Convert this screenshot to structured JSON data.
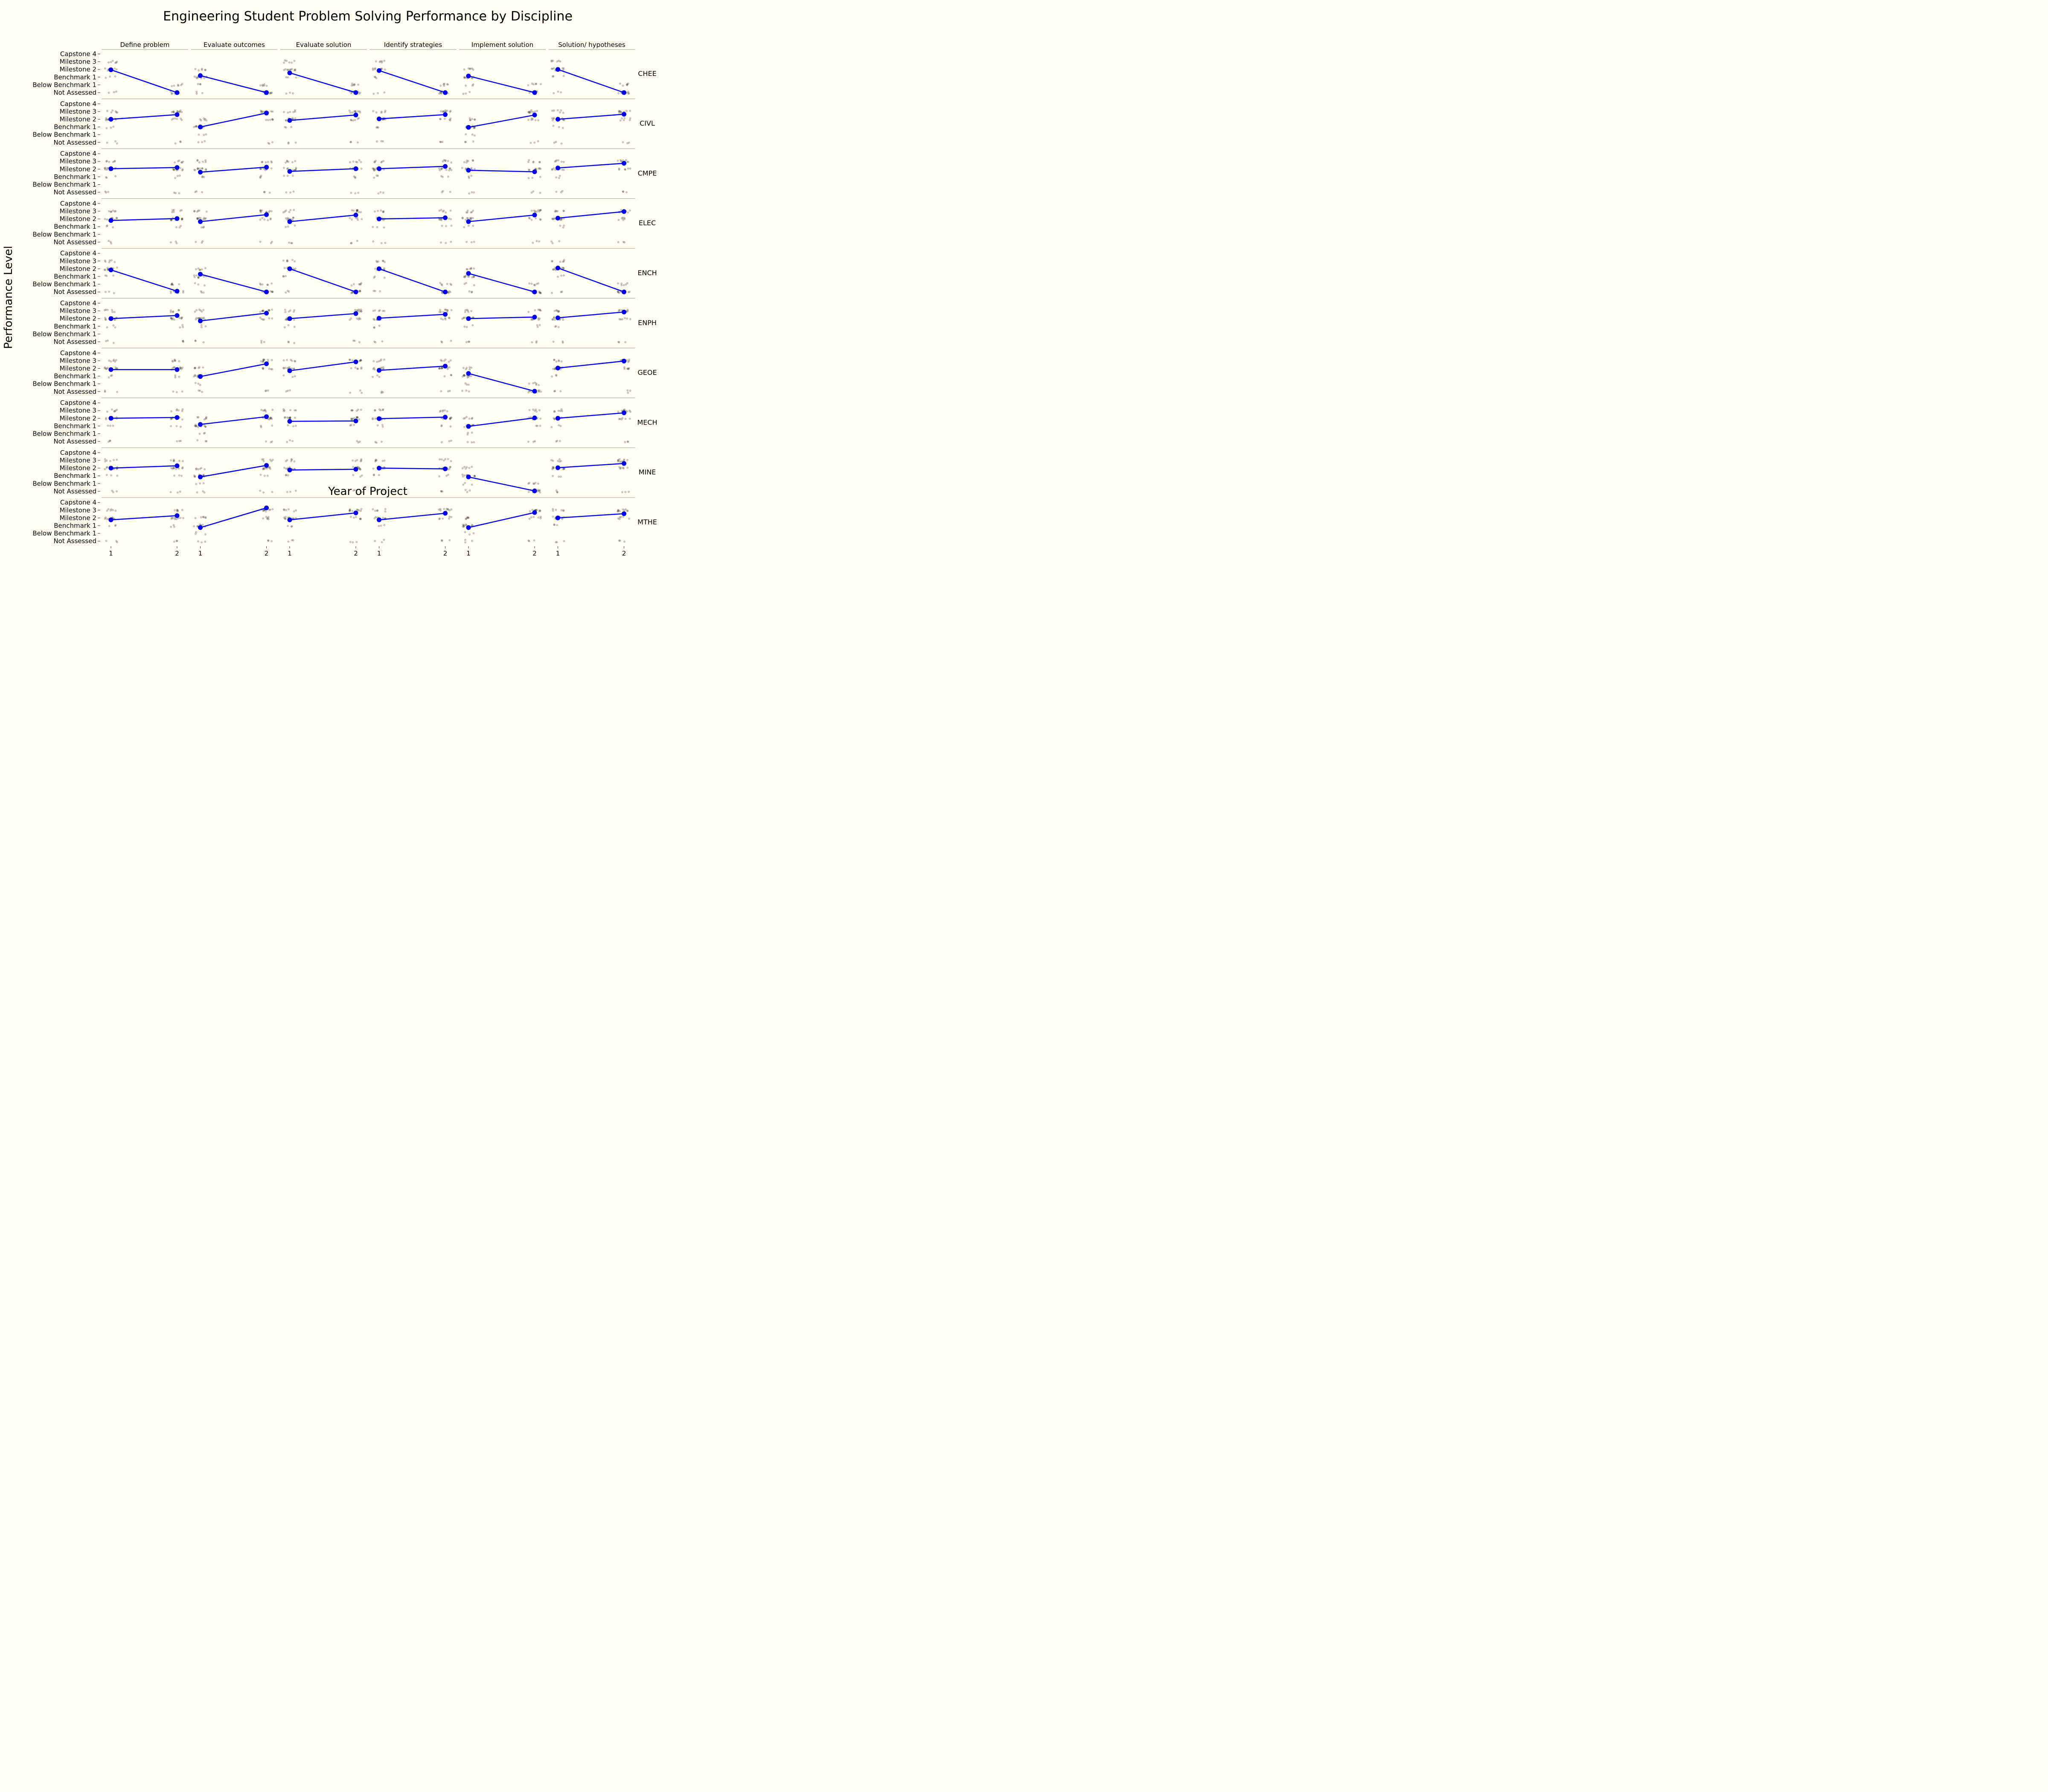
{
  "chart_data": {
    "type": "line",
    "title": "Engineering Student Problem Solving Performance by Discipline",
    "xlabel": "Year of Project",
    "ylabel": "Performance Level",
    "x_ticks": [
      "1",
      "2"
    ],
    "levels": [
      "Not Assessed",
      "Below Benchmark 1",
      "Benchmark 1",
      "Milestone 2",
      "Milestone 3",
      "Capstone 4"
    ],
    "level_values": [
      0,
      1,
      2,
      3,
      4,
      5
    ],
    "facet_columns": [
      "Define problem",
      "Evaluate outcomes",
      "Evaluate solution",
      "Identify strategies",
      "Implement solution",
      "Solution/ hypotheses"
    ],
    "facet_rows": [
      "CHEE",
      "CIVL",
      "CMPE",
      "ELEC",
      "ENCH",
      "ENPH",
      "GEOE",
      "MECH",
      "MINE",
      "MTHE"
    ],
    "mean_values": {
      "CHEE": [
        [
          2.95,
          0.0
        ],
        [
          2.2,
          0.0
        ],
        [
          2.55,
          0.0
        ],
        [
          2.85,
          0.0
        ],
        [
          2.15,
          0.0
        ],
        [
          3.0,
          0.0
        ]
      ],
      "CIVL": [
        [
          3.0,
          3.6
        ],
        [
          2.0,
          3.8
        ],
        [
          2.85,
          3.55
        ],
        [
          3.05,
          3.6
        ],
        [
          1.95,
          3.55
        ],
        [
          3.0,
          3.65
        ]
      ],
      "CMPE": [
        [
          3.05,
          3.2
        ],
        [
          2.6,
          3.25
        ],
        [
          2.7,
          3.05
        ],
        [
          3.05,
          3.35
        ],
        [
          2.85,
          2.65
        ],
        [
          3.15,
          3.75
        ]
      ],
      "ELEC": [
        [
          2.8,
          3.05
        ],
        [
          2.65,
          3.55
        ],
        [
          2.65,
          3.5
        ],
        [
          3.0,
          3.15
        ],
        [
          2.65,
          3.5
        ],
        [
          3.1,
          3.95
        ]
      ],
      "ENCH": [
        [
          2.85,
          0.1
        ],
        [
          2.3,
          0.0
        ],
        [
          3.0,
          0.0
        ],
        [
          3.0,
          0.0
        ],
        [
          2.4,
          0.0
        ],
        [
          3.1,
          0.0
        ]
      ],
      "ENPH": [
        [
          3.0,
          3.4
        ],
        [
          2.7,
          3.7
        ],
        [
          3.0,
          3.65
        ],
        [
          3.05,
          3.55
        ],
        [
          3.0,
          3.2
        ],
        [
          3.1,
          3.85
        ]
      ],
      "GEOE": [
        [
          2.85,
          2.85
        ],
        [
          1.95,
          3.6
        ],
        [
          2.7,
          3.85
        ],
        [
          2.75,
          3.3
        ],
        [
          2.35,
          0.05
        ],
        [
          3.05,
          3.95
        ]
      ],
      "MECH": [
        [
          3.0,
          3.1
        ],
        [
          2.2,
          3.2
        ],
        [
          2.6,
          2.65
        ],
        [
          2.95,
          3.15
        ],
        [
          1.95,
          3.05
        ],
        [
          3.0,
          3.7
        ]
      ],
      "MINE": [
        [
          3.0,
          3.3
        ],
        [
          1.85,
          3.35
        ],
        [
          2.75,
          2.85
        ],
        [
          3.0,
          2.9
        ],
        [
          1.85,
          0.05
        ],
        [
          3.05,
          3.6
        ]
      ],
      "MTHE": [
        [
          2.75,
          3.3
        ],
        [
          1.75,
          4.3
        ],
        [
          2.75,
          3.65
        ],
        [
          2.75,
          3.6
        ],
        [
          1.75,
          3.7
        ],
        [
          3.0,
          3.55
        ]
      ]
    },
    "point_color": "#0000ee",
    "line_color": "#0000ee",
    "individual_point_color": "#000000",
    "background_color": "#fffff2",
    "grid": false,
    "legend": "none"
  }
}
